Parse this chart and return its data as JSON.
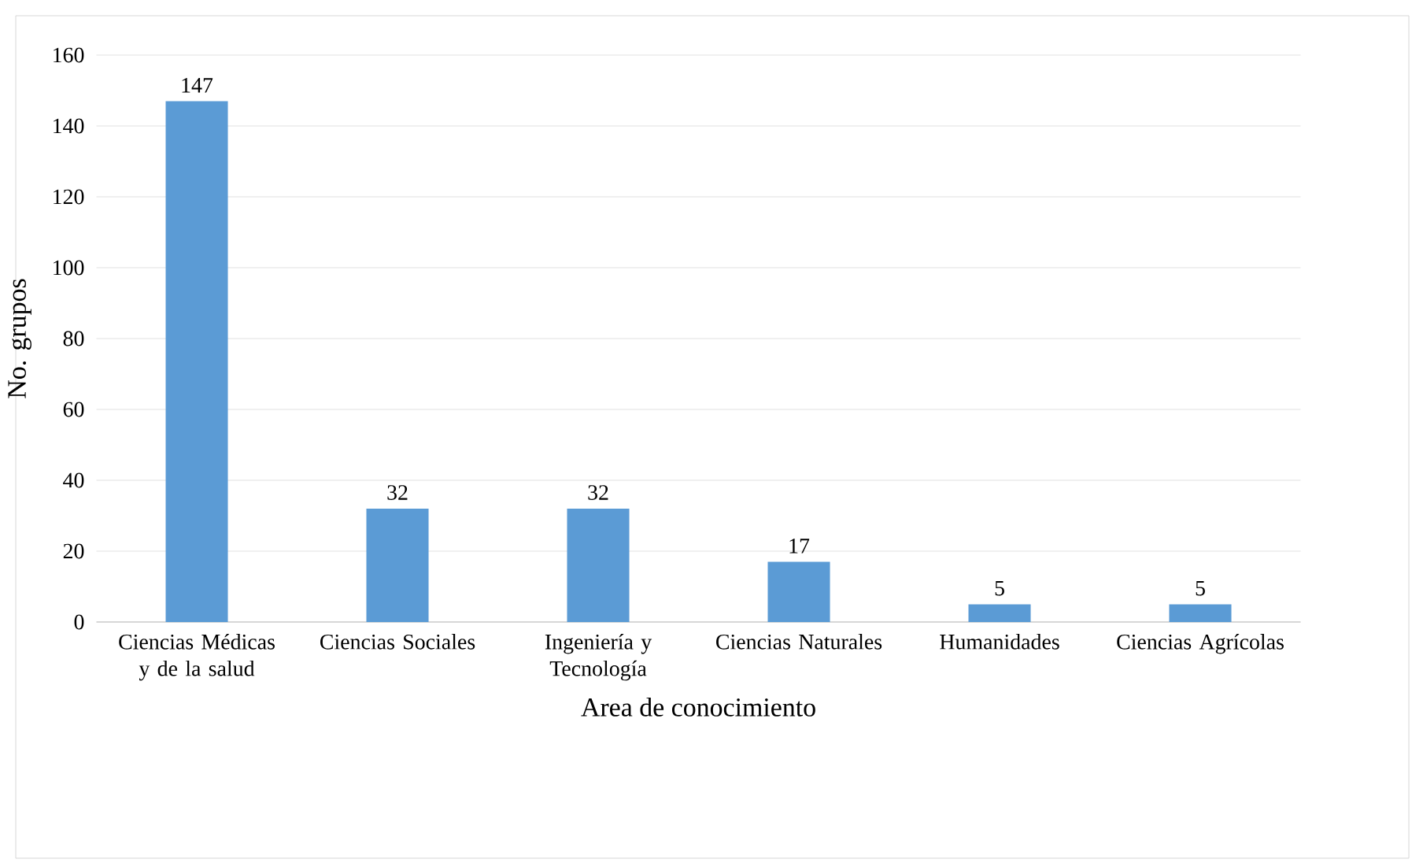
{
  "chart_data": {
    "type": "bar",
    "xlabel": "Area de conocimiento",
    "ylabel": "No. grupos",
    "categories": [
      "Ciencias Médicas y de la salud",
      "Ciencias Sociales",
      "Ingeniería y Tecnología",
      "Ciencias Naturales",
      "Humanidades",
      "Ciencias Agrícolas"
    ],
    "values": [
      147,
      32,
      32,
      17,
      5,
      5
    ],
    "color": "#5b9bd5",
    "ylim": [
      0,
      160
    ],
    "yticks": [
      0,
      20,
      40,
      60,
      80,
      100,
      120,
      140,
      160
    ],
    "grid": "y",
    "data_labels": true
  }
}
